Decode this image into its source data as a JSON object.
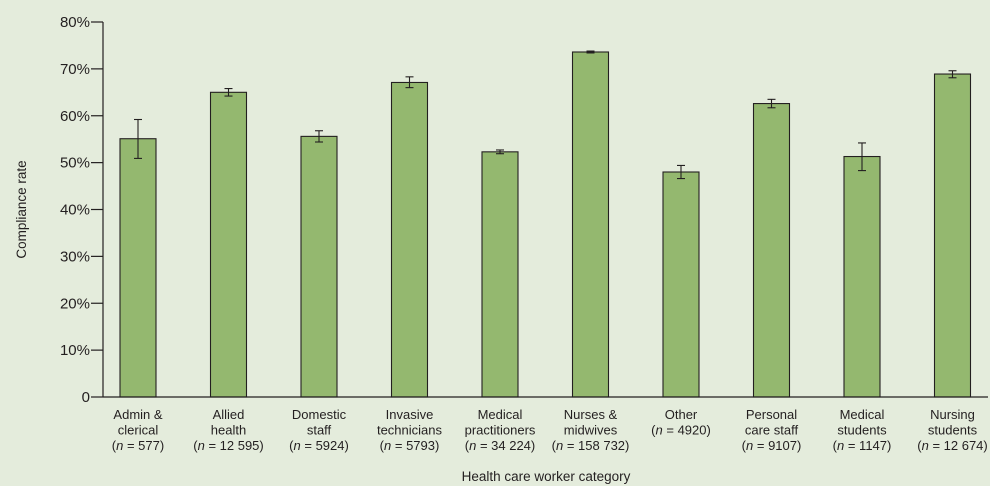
{
  "chart_data": {
    "type": "bar",
    "ylabel": "Compliance rate",
    "xlabel": "Health care worker category",
    "ylim": [
      0,
      80
    ],
    "yticks": [
      {
        "value": 0,
        "label": "0"
      },
      {
        "value": 10,
        "label": "10%"
      },
      {
        "value": 20,
        "label": "20%"
      },
      {
        "value": 30,
        "label": "30%"
      },
      {
        "value": 40,
        "label": "40%"
      },
      {
        "value": 50,
        "label": "50%"
      },
      {
        "value": 60,
        "label": "60%"
      },
      {
        "value": 70,
        "label": "70%"
      },
      {
        "value": 80,
        "label": "80%"
      }
    ],
    "grid": false,
    "categories": [
      {
        "lines": [
          "Admin &",
          "clerical"
        ],
        "n": "577"
      },
      {
        "lines": [
          "Allied",
          "health"
        ],
        "n": "12 595"
      },
      {
        "lines": [
          "Domestic",
          "staff"
        ],
        "n": "5924"
      },
      {
        "lines": [
          "Invasive",
          "technicians"
        ],
        "n": "5793"
      },
      {
        "lines": [
          "Medical",
          "practitioners"
        ],
        "n": "34 224"
      },
      {
        "lines": [
          "Nurses &",
          "midwives"
        ],
        "n": "158 732"
      },
      {
        "lines": [],
        "n": "4920",
        "name_inline": "Other"
      },
      {
        "lines": [
          "Personal",
          "care staff"
        ],
        "n": "9107"
      },
      {
        "lines": [
          "Medical",
          "students"
        ],
        "n": "1147"
      },
      {
        "lines": [
          "Nursing",
          "students"
        ],
        "n": "12 674"
      }
    ],
    "values": [
      55.1,
      65.0,
      55.6,
      67.1,
      52.3,
      73.6,
      48.0,
      62.6,
      51.3,
      68.9
    ],
    "error_low": [
      50.9,
      64.2,
      54.4,
      66.0,
      51.9,
      73.4,
      46.6,
      61.7,
      48.3,
      68.1
    ],
    "error_high": [
      59.2,
      65.8,
      56.8,
      68.3,
      52.7,
      73.8,
      49.4,
      63.5,
      54.2,
      69.6
    ],
    "n_prefix": "n",
    "n_sep": " = ",
    "colors": {
      "bar_fill": "#94b86f",
      "bar_stroke": "#231f20",
      "axis": "#231f20",
      "background": "#e4ecdc"
    }
  }
}
